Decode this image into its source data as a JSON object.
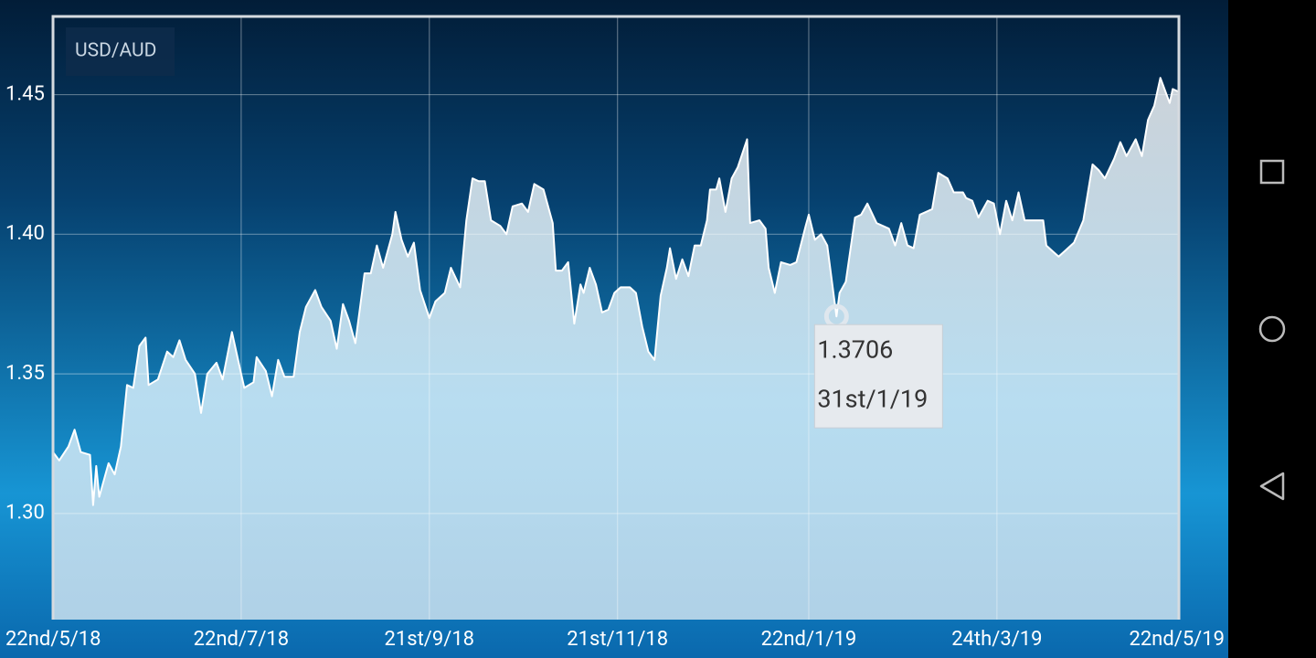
{
  "chart_data": {
    "type": "area",
    "series": [
      {
        "name": "USD/AUD",
        "color": "#ffffff",
        "fill": "#c6d8e3",
        "values": [
          1.322,
          1.319,
          1.324,
          1.33,
          1.322,
          1.321,
          1.303,
          1.317,
          1.306,
          1.318,
          1.314,
          1.324,
          1.346,
          1.345,
          1.36,
          1.363,
          1.346,
          1.348,
          1.358,
          1.356,
          1.362,
          1.355,
          1.35,
          1.336,
          1.35,
          1.354,
          1.348,
          1.365,
          1.355,
          1.345,
          1.347,
          1.356,
          1.351,
          1.342,
          1.355,
          1.349,
          1.349,
          1.365,
          1.374,
          1.38,
          1.374,
          1.369,
          1.359,
          1.375,
          1.369,
          1.361,
          1.386,
          1.386,
          1.396,
          1.388,
          1.4,
          1.408,
          1.398,
          1.392,
          1.397,
          1.38,
          1.37,
          1.376,
          1.379,
          1.388,
          1.381,
          1.405,
          1.42,
          1.419,
          1.419,
          1.405,
          1.403,
          1.4,
          1.41,
          1.411,
          1.408,
          1.418,
          1.416,
          1.404,
          1.387,
          1.387,
          1.39,
          1.368,
          1.382,
          1.379,
          1.388,
          1.382,
          1.372,
          1.373,
          1.379,
          1.381,
          1.381,
          1.379,
          1.367,
          1.358,
          1.355,
          1.378,
          1.388,
          1.395,
          1.384,
          1.391,
          1.385,
          1.396,
          1.396,
          1.405,
          1.416,
          1.416,
          1.42,
          1.408,
          1.42,
          1.424,
          1.434,
          1.404,
          1.405,
          1.402,
          1.388,
          1.379,
          1.39,
          1.389,
          1.39,
          1.403,
          1.407,
          1.398,
          1.4,
          1.396,
          1.3706,
          1.379,
          1.383,
          1.406,
          1.407,
          1.411,
          1.404,
          1.403,
          1.402,
          1.396,
          1.404,
          1.396,
          1.395,
          1.407,
          1.408,
          1.409,
          1.422,
          1.42,
          1.415,
          1.415,
          1.413,
          1.412,
          1.406,
          1.412,
          1.411,
          1.4,
          1.412,
          1.405,
          1.415,
          1.405,
          1.405,
          1.405,
          1.396,
          1.394,
          1.392,
          1.394,
          1.397,
          1.405,
          1.425,
          1.423,
          1.42,
          1.427,
          1.433,
          1.428,
          1.434,
          1.428,
          1.441,
          1.446,
          1.456,
          1.453,
          1.447,
          1.452,
          1.451
        ]
      }
    ],
    "x": [
      "2018-05-22",
      "2018-05-24",
      "2018-05-27",
      "2018-05-29",
      "2018-05-31",
      "2018-06-03",
      "2018-06-04",
      "2018-06-05",
      "2018-06-06",
      "2018-06-09",
      "2018-06-11",
      "2018-06-13",
      "2018-06-15",
      "2018-06-17",
      "2018-06-19",
      "2018-06-21",
      "2018-06-22",
      "2018-06-25",
      "2018-06-28",
      "2018-06-30",
      "2018-07-02",
      "2018-07-04",
      "2018-07-07",
      "2018-07-09",
      "2018-07-11",
      "2018-07-14",
      "2018-07-16",
      "2018-07-19",
      "2018-07-21",
      "2018-07-23",
      "2018-07-26",
      "2018-07-27",
      "2018-07-30",
      "2018-08-01",
      "2018-08-03",
      "2018-08-05",
      "2018-08-08",
      "2018-08-10",
      "2018-08-12",
      "2018-08-15",
      "2018-08-17",
      "2018-08-20",
      "2018-08-22",
      "2018-08-24",
      "2018-08-26",
      "2018-08-28",
      "2018-08-31",
      "2018-09-02",
      "2018-09-04",
      "2018-09-06",
      "2018-09-09",
      "2018-09-10",
      "2018-09-12",
      "2018-09-14",
      "2018-09-16",
      "2018-09-18",
      "2018-09-21",
      "2018-09-23",
      "2018-09-26",
      "2018-09-28",
      "2018-10-01",
      "2018-10-03",
      "2018-10-05",
      "2018-10-07",
      "2018-10-09",
      "2018-10-11",
      "2018-10-14",
      "2018-10-16",
      "2018-10-18",
      "2018-10-21",
      "2018-10-23",
      "2018-10-25",
      "2018-10-28",
      "2018-10-31",
      "2018-11-01",
      "2018-11-03",
      "2018-11-05",
      "2018-11-07",
      "2018-11-09",
      "2018-11-10",
      "2018-11-12",
      "2018-11-14",
      "2018-11-16",
      "2018-11-18",
      "2018-11-20",
      "2018-11-22",
      "2018-11-25",
      "2018-11-27",
      "2018-11-29",
      "2018-12-01",
      "2018-12-03",
      "2018-12-05",
      "2018-12-07",
      "2018-12-08",
      "2018-12-10",
      "2018-12-12",
      "2018-12-14",
      "2018-12-16",
      "2018-12-18",
      "2018-12-20",
      "2018-12-21",
      "2018-12-23",
      "2018-12-24",
      "2018-12-26",
      "2018-12-28",
      "2018-12-30",
      "2019-01-02",
      "2019-01-03",
      "2019-01-06",
      "2019-01-08",
      "2019-01-09",
      "2019-01-11",
      "2019-01-13",
      "2019-01-16",
      "2019-01-18",
      "2019-01-21",
      "2019-01-22",
      "2019-01-24",
      "2019-01-26",
      "2019-01-28",
      "2019-01-31",
      "2019-02-01",
      "2019-02-03",
      "2019-02-06",
      "2019-02-08",
      "2019-02-10",
      "2019-02-13",
      "2019-02-15",
      "2019-02-17",
      "2019-02-19",
      "2019-02-21",
      "2019-02-23",
      "2019-02-25",
      "2019-02-27",
      "2019-03-01",
      "2019-03-03",
      "2019-03-05",
      "2019-03-08",
      "2019-03-10",
      "2019-03-13",
      "2019-03-14",
      "2019-03-16",
      "2019-03-18",
      "2019-03-21",
      "2019-03-23",
      "2019-03-25",
      "2019-03-27",
      "2019-03-29",
      "2019-03-31",
      "2019-04-02",
      "2019-04-05",
      "2019-04-08",
      "2019-04-09",
      "2019-04-11",
      "2019-04-13",
      "2019-04-15",
      "2019-04-18",
      "2019-04-21",
      "2019-04-24",
      "2019-04-26",
      "2019-04-28",
      "2019-05-01",
      "2019-05-03",
      "2019-05-05",
      "2019-05-08",
      "2019-05-10",
      "2019-05-12",
      "2019-05-14",
      "2019-05-16",
      "2019-05-17",
      "2019-05-19",
      "2019-05-20",
      "2019-05-22"
    ],
    "xlim": [
      "2018-05-22",
      "2019-05-22"
    ],
    "xticks": [
      {
        "value": "2018-05-22",
        "label": "22nd/5/18"
      },
      {
        "value": "2018-07-22",
        "label": "22nd/7/18"
      },
      {
        "value": "2018-09-21",
        "label": "21st/9/18"
      },
      {
        "value": "2018-11-21",
        "label": "21st/11/18"
      },
      {
        "value": "2019-01-22",
        "label": "22nd/1/19"
      },
      {
        "value": "2019-03-24",
        "label": "24th/3/19"
      },
      {
        "value": "2019-05-22",
        "label": "22nd/5/19"
      }
    ],
    "ylim": [
      1.262,
      1.478
    ],
    "yticks": [
      {
        "value": 1.3,
        "label": "1.30"
      },
      1.35,
      {
        "value": 1.4,
        "label": "1.40"
      },
      1.45
    ],
    "grid": true,
    "tooltip": {
      "x": "2019-01-31",
      "label": "31st/1/19",
      "value": 1.3706
    }
  }
}
